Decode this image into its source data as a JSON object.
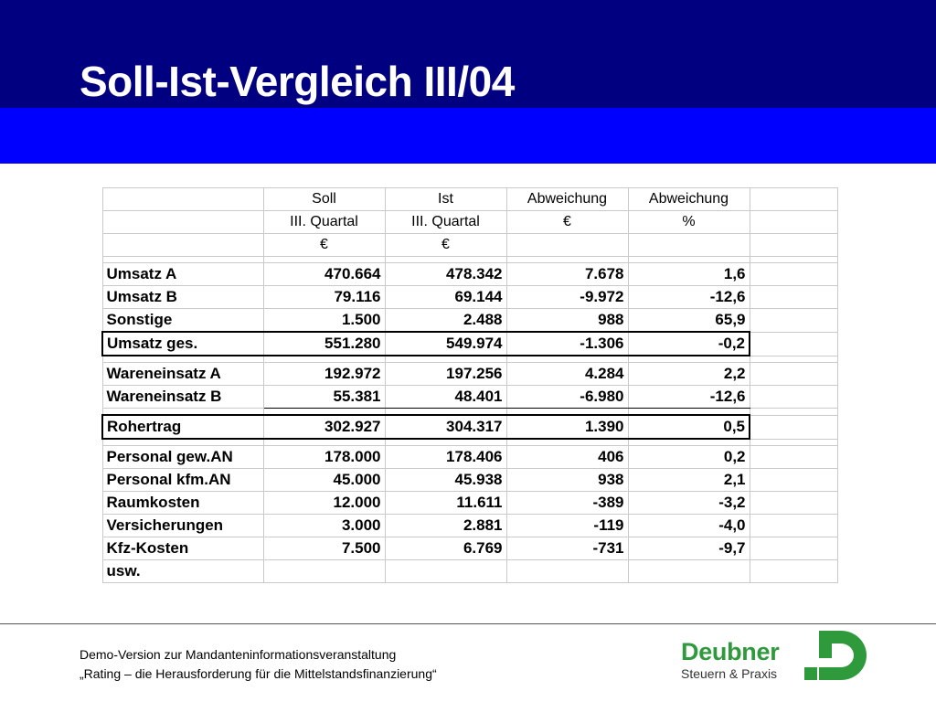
{
  "slide": {
    "title": "Soll-Ist-Vergleich III/04"
  },
  "table": {
    "header": [
      [
        "",
        "Soll",
        "Ist",
        "Abweichung",
        "Abweichung",
        ""
      ],
      [
        "",
        "III. Quartal",
        "III. Quartal",
        "€",
        "%",
        ""
      ],
      [
        "",
        "€",
        "€",
        "",
        "",
        ""
      ]
    ],
    "groups": [
      {
        "rows": [
          {
            "label": "Umsatz A",
            "soll": "470.664",
            "ist": "478.342",
            "abw_eur": "7.678",
            "abw_pct": "1,6"
          },
          {
            "label": "Umsatz B",
            "soll": "79.116",
            "ist": "69.144",
            "abw_eur": "-9.972",
            "abw_pct": "-12,6"
          },
          {
            "label": "Sonstige",
            "soll": "1.500",
            "ist": "2.488",
            "abw_eur": "988",
            "abw_pct": "65,9"
          },
          {
            "label": "Umsatz ges.",
            "soll": "551.280",
            "ist": "549.974",
            "abw_eur": "-1.306",
            "abw_pct": "-0,2",
            "highlight": true
          }
        ]
      },
      {
        "rows": [
          {
            "label": "Wareneinsatz A",
            "soll": "192.972",
            "ist": "197.256",
            "abw_eur": "4.284",
            "abw_pct": "2,2"
          },
          {
            "label": "Wareneinsatz B",
            "soll": "55.381",
            "ist": "48.401",
            "abw_eur": "-6.980",
            "abw_pct": "-12,6",
            "underline": true
          }
        ]
      },
      {
        "rows": [
          {
            "label": "Rohertrag",
            "soll": "302.927",
            "ist": "304.317",
            "abw_eur": "1.390",
            "abw_pct": "0,5",
            "highlight": true
          }
        ]
      },
      {
        "rows": [
          {
            "label": "Personal gew.AN",
            "soll": "178.000",
            "ist": "178.406",
            "abw_eur": "406",
            "abw_pct": "0,2"
          },
          {
            "label": "Personal kfm.AN",
            "soll": "45.000",
            "ist": "45.938",
            "abw_eur": "938",
            "abw_pct": "2,1"
          },
          {
            "label": "Raumkosten",
            "soll": "12.000",
            "ist": "11.611",
            "abw_eur": "-389",
            "abw_pct": "-3,2"
          },
          {
            "label": "Versicherungen",
            "soll": "3.000",
            "ist": "2.881",
            "abw_eur": "-119",
            "abw_pct": "-4,0"
          },
          {
            "label": "Kfz-Kosten",
            "soll": "7.500",
            "ist": "6.769",
            "abw_eur": "-731",
            "abw_pct": "-9,7"
          },
          {
            "label": "usw.",
            "soll": "",
            "ist": "",
            "abw_eur": "",
            "abw_pct": ""
          }
        ]
      }
    ]
  },
  "footer": {
    "line1": "Demo-Version zur Mandanteninformationsveranstaltung",
    "line2": "„Rating – die Herausforderung für die Mittelstandsfinanzierung“"
  },
  "logo": {
    "name": "Deubner",
    "subtitle": "Steuern & Praxis",
    "color": "#2e9a3b"
  },
  "colors": {
    "banner_dark": "#000080",
    "banner_light": "#0000ff"
  }
}
